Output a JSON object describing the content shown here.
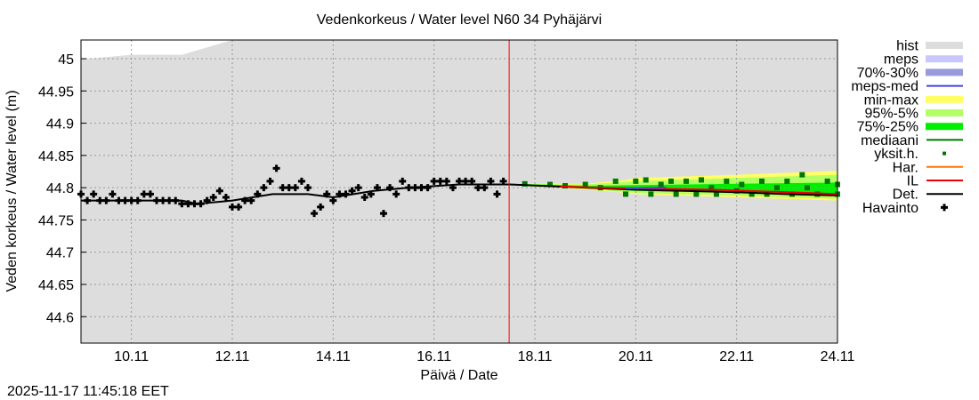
{
  "chart_data": {
    "type": "line",
    "title": "Vedenkorkeus / Water level   N60 34 Pyhäjärvi",
    "xlabel": "Päivä / Date",
    "ylabel": "Veden korkeus / Water level (m)",
    "xlim": [
      9.0,
      24.0
    ],
    "ylim": [
      44.559,
      45.029
    ],
    "x_ticks": [
      {
        "v": 10,
        "label": "10.11"
      },
      {
        "v": 12,
        "label": "12.11"
      },
      {
        "v": 14,
        "label": "14.11"
      },
      {
        "v": 16,
        "label": "16.11"
      },
      {
        "v": 18,
        "label": "18.11"
      },
      {
        "v": 20,
        "label": "20.11"
      },
      {
        "v": 22,
        "label": "22.11"
      },
      {
        "v": 24,
        "label": "24.11"
      }
    ],
    "y_ticks": [
      {
        "v": 45,
        "label": "45"
      },
      {
        "v": 44.95,
        "label": "44.95"
      },
      {
        "v": 44.9,
        "label": "44.9"
      },
      {
        "v": 44.85,
        "label": "44.85"
      },
      {
        "v": 44.8,
        "label": "44.8"
      },
      {
        "v": 44.75,
        "label": "44.75"
      },
      {
        "v": 44.7,
        "label": "44.7"
      },
      {
        "v": 44.65,
        "label": "44.65"
      },
      {
        "v": 44.6,
        "label": "44.6"
      }
    ],
    "grid": true,
    "now_marker": 17.49,
    "legend_position": "right",
    "timestamp": "2025-11-17 11:45:18 EET",
    "legend": [
      {
        "label": "hist",
        "kind": "band",
        "color": "#dddddd"
      },
      {
        "label": "meps",
        "kind": "band",
        "color": "#c8c8ff"
      },
      {
        "label": "70%-30%",
        "kind": "band",
        "color": "#9999dd"
      },
      {
        "label": "meps-med",
        "kind": "line",
        "color": "#4444dd"
      },
      {
        "label": "min-max",
        "kind": "band",
        "color": "#ffff66"
      },
      {
        "label": "95%-5%",
        "kind": "band",
        "color": "#b3ff66"
      },
      {
        "label": "75%-25%",
        "kind": "band",
        "color": "#00ee00"
      },
      {
        "label": "mediaani",
        "kind": "line",
        "color": "#007700"
      },
      {
        "label": "yksit.h.",
        "kind": "dot",
        "color": "#007700"
      },
      {
        "label": "Har.",
        "kind": "line",
        "color": "#ff7700"
      },
      {
        "label": "IL",
        "kind": "line",
        "color": "#ee0000"
      },
      {
        "label": "Det.",
        "kind": "line",
        "color": "#000000"
      },
      {
        "label": "Havainto",
        "kind": "cross",
        "color": "#000000"
      }
    ],
    "hist_upper": [
      [
        9.0,
        44.999
      ],
      [
        10.0,
        45.006
      ],
      [
        11.0,
        45.006
      ],
      [
        12.0,
        45.029
      ],
      [
        24.0,
        45.029
      ]
    ],
    "observations_start": 9.0,
    "observations_step_days": 0.125,
    "observations": [
      44.79,
      44.78,
      44.79,
      44.78,
      44.78,
      44.79,
      44.78,
      44.78,
      44.78,
      44.78,
      44.79,
      44.79,
      44.78,
      44.78,
      44.78,
      44.78,
      44.775,
      44.775,
      44.775,
      44.775,
      44.78,
      44.785,
      44.795,
      44.785,
      44.77,
      44.77,
      44.78,
      44.78,
      44.79,
      44.8,
      44.81,
      44.83,
      44.8,
      44.8,
      44.8,
      44.81,
      44.8,
      44.76,
      44.77,
      44.79,
      44.78,
      44.79,
      44.79,
      44.795,
      44.8,
      44.785,
      44.79,
      44.8,
      44.76,
      44.8,
      44.79,
      44.81,
      44.8,
      44.8,
      44.8,
      44.8,
      44.81,
      44.81,
      44.81,
      44.8,
      44.81,
      44.81,
      44.81,
      44.8,
      44.8,
      44.81,
      44.79,
      44.81
    ],
    "det": [
      [
        9.0,
        44.78
      ],
      [
        11.0,
        44.78
      ],
      [
        11.3,
        44.775
      ],
      [
        12.0,
        44.78
      ],
      [
        12.8,
        44.79
      ],
      [
        13.5,
        44.79
      ],
      [
        14.0,
        44.785
      ],
      [
        14.8,
        44.795
      ],
      [
        15.5,
        44.8
      ],
      [
        16.5,
        44.805
      ],
      [
        17.5,
        44.805
      ],
      [
        19.0,
        44.8
      ],
      [
        20.0,
        44.797
      ],
      [
        21.0,
        44.795
      ],
      [
        22.0,
        44.793
      ],
      [
        23.0,
        44.79
      ],
      [
        24.0,
        44.788
      ]
    ],
    "il": [
      [
        18.5,
        44.802
      ],
      [
        19.2,
        44.8
      ],
      [
        21.5,
        44.797
      ],
      [
        23.0,
        44.793
      ],
      [
        24.0,
        44.79
      ]
    ],
    "meps_med": [
      [
        19.8,
        44.799
      ],
      [
        20.6,
        44.8
      ]
    ],
    "bands": {
      "min_max": [
        [
          17.5,
          44.806,
          44.804
        ],
        [
          19.0,
          44.806,
          44.797
        ],
        [
          19.8,
          44.812,
          44.792
        ],
        [
          20.0,
          44.815,
          44.79
        ],
        [
          22.0,
          44.82,
          44.785
        ],
        [
          24.0,
          44.826,
          44.78
        ]
      ],
      "p95_5": [
        [
          17.5,
          44.806,
          44.804
        ],
        [
          19.0,
          44.805,
          44.798
        ],
        [
          20.0,
          44.81,
          44.792
        ],
        [
          22.0,
          44.815,
          44.788
        ],
        [
          24.0,
          44.82,
          44.783
        ]
      ],
      "p75_25": [
        [
          17.5,
          44.806,
          44.804
        ],
        [
          19.0,
          44.803,
          44.799
        ],
        [
          20.0,
          44.804,
          44.795
        ],
        [
          22.0,
          44.806,
          44.792
        ],
        [
          24.0,
          44.808,
          44.789
        ]
      ]
    },
    "members": [
      [
        17.8,
        44.806
      ],
      [
        18.3,
        44.805
      ],
      [
        18.6,
        44.803
      ],
      [
        19.0,
        44.805
      ],
      [
        19.3,
        44.8
      ],
      [
        19.6,
        44.81
      ],
      [
        19.8,
        44.79
      ],
      [
        20.0,
        44.81
      ],
      [
        20.2,
        44.812
      ],
      [
        20.3,
        44.79
      ],
      [
        20.5,
        44.805
      ],
      [
        20.7,
        44.81
      ],
      [
        20.8,
        44.79
      ],
      [
        21.0,
        44.81
      ],
      [
        21.2,
        44.79
      ],
      [
        21.3,
        44.812
      ],
      [
        21.5,
        44.8
      ],
      [
        21.6,
        44.79
      ],
      [
        21.8,
        44.81
      ],
      [
        22.0,
        44.795
      ],
      [
        22.1,
        44.805
      ],
      [
        22.3,
        44.79
      ],
      [
        22.5,
        44.81
      ],
      [
        22.6,
        44.79
      ],
      [
        22.8,
        44.8
      ],
      [
        23.0,
        44.81
      ],
      [
        23.1,
        44.79
      ],
      [
        23.3,
        44.82
      ],
      [
        23.4,
        44.8
      ],
      [
        23.6,
        44.79
      ],
      [
        23.8,
        44.81
      ],
      [
        24.0,
        44.79
      ],
      [
        24.0,
        44.805
      ]
    ]
  }
}
